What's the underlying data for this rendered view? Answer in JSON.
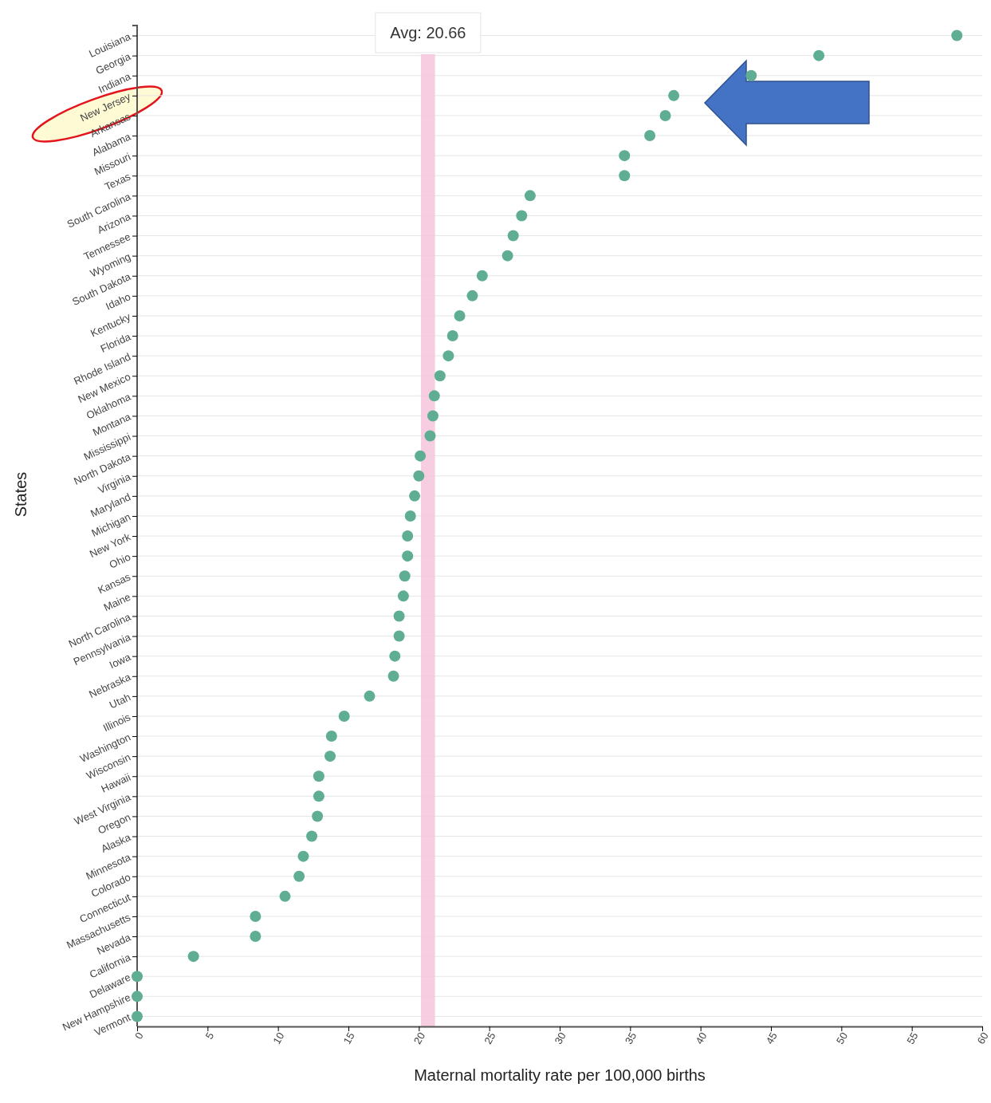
{
  "chart_data": {
    "type": "scatter",
    "orientation": "horizontal",
    "xlabel": "Maternal mortality rate per 100,000 births",
    "ylabel": "States",
    "categories": [
      "Louisiana",
      "Georgia",
      "Indiana",
      "New Jersey",
      "Arkansas",
      "Alabama",
      "Missouri",
      "Texas",
      "South Carolina",
      "Arizona",
      "Tennessee",
      "Wyoming",
      "South Dakota",
      "Idaho",
      "Kentucky",
      "Florida",
      "Rhode Island",
      "New Mexico",
      "Oklahoma",
      "Montana",
      "Mississippi",
      "North Dakota",
      "Virginia",
      "Maryland",
      "Michigan",
      "New York",
      "Ohio",
      "Kansas",
      "Maine",
      "North Carolina",
      "Pennsylvania",
      "Iowa",
      "Nebraska",
      "Utah",
      "Illinois",
      "Washington",
      "Wisconsin",
      "Hawaii",
      "West Virginia",
      "Oregon",
      "Alaska",
      "Minnesota",
      "Colorado",
      "Connecticut",
      "Massachusetts",
      "Nevada",
      "California",
      "Delaware",
      "New Hampshire",
      "Vermont"
    ],
    "series": [
      {
        "color": "#5fae93",
        "values": [
          58.2,
          48.4,
          43.6,
          38.1,
          37.5,
          36.4,
          34.6,
          34.6,
          27.9,
          27.3,
          26.7,
          26.3,
          24.5,
          23.8,
          22.9,
          22.4,
          22.1,
          21.5,
          21.1,
          21.0,
          20.8,
          20.1,
          20.0,
          19.7,
          19.4,
          19.2,
          19.2,
          19.0,
          18.9,
          18.6,
          18.6,
          18.3,
          18.2,
          16.5,
          14.7,
          13.8,
          13.7,
          12.9,
          12.9,
          12.8,
          12.4,
          11.8,
          11.5,
          10.5,
          8.4,
          8.4,
          4.0,
          0,
          0,
          0
        ]
      }
    ],
    "xlim": [
      0,
      60
    ],
    "xticks": [
      0,
      5,
      10,
      15,
      20,
      25,
      30,
      35,
      40,
      45,
      50,
      55,
      60
    ],
    "bands": [
      {
        "axis": "x",
        "from": 20.15,
        "to": 21.15,
        "label": "Avg: 20.66",
        "color": "#f6c6dc"
      }
    ],
    "grid": "y",
    "marker": "circle"
  }
}
